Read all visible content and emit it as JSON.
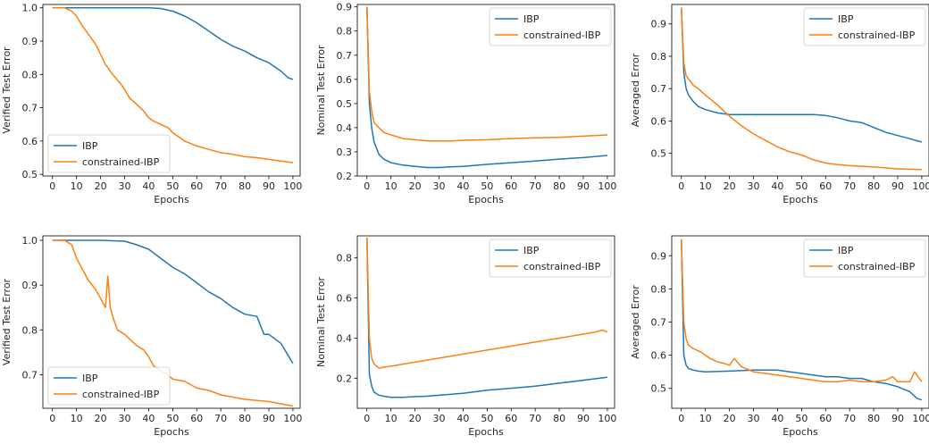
{
  "colors": {
    "IBP": "#1f77b4",
    "constrained-IBP": "#ff7f0e"
  },
  "chart_data": [
    {
      "type": "line",
      "xlabel": "Epochs",
      "ylabel": "Verified Test Error",
      "xlim": [
        -4,
        103
      ],
      "ylim": [
        0.495,
        1.01
      ],
      "xticks": [
        0,
        10,
        20,
        30,
        40,
        50,
        60,
        70,
        80,
        90,
        100
      ],
      "yticks": [
        0.5,
        0.6,
        0.7,
        0.8,
        0.9,
        1.0
      ],
      "yticklabels": [
        "0.5",
        "0.6",
        "0.7",
        "0.8",
        "0.9",
        "1.0"
      ],
      "legend": "bottom-left",
      "series": [
        {
          "name": "IBP",
          "color": "IBP",
          "x": [
            0,
            5,
            10,
            20,
            30,
            40,
            45,
            50,
            55,
            60,
            65,
            70,
            75,
            80,
            85,
            90,
            95,
            98,
            100
          ],
          "y": [
            1.0,
            1.0,
            1.0,
            1.0,
            1.0,
            1.0,
            0.998,
            0.99,
            0.975,
            0.955,
            0.93,
            0.905,
            0.885,
            0.87,
            0.85,
            0.835,
            0.81,
            0.79,
            0.785
          ]
        },
        {
          "name": "constrained-IBP",
          "color": "constrained-IBP",
          "x": [
            0,
            5,
            8,
            10,
            12,
            15,
            18,
            20,
            22,
            25,
            28,
            30,
            32,
            35,
            38,
            40,
            42,
            45,
            48,
            50,
            55,
            60,
            65,
            70,
            75,
            80,
            85,
            90,
            95,
            100
          ],
          "y": [
            1.0,
            1.0,
            0.99,
            0.975,
            0.95,
            0.92,
            0.89,
            0.86,
            0.83,
            0.8,
            0.775,
            0.755,
            0.73,
            0.71,
            0.69,
            0.67,
            0.66,
            0.65,
            0.64,
            0.625,
            0.6,
            0.585,
            0.575,
            0.565,
            0.56,
            0.553,
            0.55,
            0.545,
            0.54,
            0.535
          ]
        }
      ]
    },
    {
      "type": "line",
      "xlabel": "Epochs",
      "ylabel": "Nominal Test Error",
      "xlim": [
        -4,
        103
      ],
      "ylim": [
        0.2,
        0.91
      ],
      "xticks": [
        0,
        10,
        20,
        30,
        40,
        50,
        60,
        70,
        80,
        90,
        100
      ],
      "yticks": [
        0.2,
        0.3,
        0.4,
        0.5,
        0.6,
        0.7,
        0.8,
        0.9
      ],
      "yticklabels": [
        "0.2",
        "0.3",
        "0.4",
        "0.5",
        "0.6",
        "0.7",
        "0.8",
        "0.9"
      ],
      "legend": "top-right",
      "series": [
        {
          "name": "IBP",
          "color": "IBP",
          "x": [
            0,
            1,
            2,
            3,
            5,
            7,
            10,
            15,
            20,
            25,
            30,
            35,
            40,
            50,
            60,
            70,
            80,
            90,
            100
          ],
          "y": [
            0.9,
            0.5,
            0.4,
            0.34,
            0.29,
            0.27,
            0.255,
            0.245,
            0.24,
            0.235,
            0.235,
            0.238,
            0.24,
            0.248,
            0.255,
            0.262,
            0.27,
            0.276,
            0.285
          ]
        },
        {
          "name": "constrained-IBP",
          "color": "constrained-IBP",
          "x": [
            0,
            1,
            2,
            3,
            5,
            7,
            10,
            15,
            20,
            25,
            30,
            35,
            40,
            50,
            60,
            70,
            80,
            90,
            100
          ],
          "y": [
            0.9,
            0.55,
            0.47,
            0.42,
            0.4,
            0.38,
            0.37,
            0.355,
            0.35,
            0.345,
            0.345,
            0.345,
            0.348,
            0.35,
            0.355,
            0.358,
            0.36,
            0.365,
            0.37
          ]
        }
      ]
    },
    {
      "type": "line",
      "xlabel": "Epochs",
      "ylabel": "Averaged Error",
      "xlim": [
        -4,
        103
      ],
      "ylim": [
        0.43,
        0.96
      ],
      "xticks": [
        0,
        10,
        20,
        30,
        40,
        50,
        60,
        70,
        80,
        90,
        100
      ],
      "yticks": [
        0.5,
        0.6,
        0.7,
        0.8,
        0.9
      ],
      "yticklabels": [
        "0.5",
        "0.6",
        "0.7",
        "0.8",
        "0.9"
      ],
      "legend": "top-right",
      "series": [
        {
          "name": "IBP",
          "color": "IBP",
          "x": [
            0,
            1,
            2,
            3,
            5,
            7,
            10,
            15,
            20,
            25,
            30,
            40,
            50,
            55,
            60,
            65,
            70,
            75,
            80,
            85,
            90,
            95,
            100
          ],
          "y": [
            0.95,
            0.75,
            0.7,
            0.68,
            0.66,
            0.645,
            0.635,
            0.625,
            0.62,
            0.62,
            0.62,
            0.62,
            0.62,
            0.62,
            0.617,
            0.61,
            0.6,
            0.595,
            0.58,
            0.565,
            0.555,
            0.545,
            0.535
          ]
        },
        {
          "name": "constrained-IBP",
          "color": "constrained-IBP",
          "x": [
            0,
            1,
            2,
            3,
            5,
            7,
            10,
            15,
            20,
            25,
            30,
            35,
            40,
            45,
            50,
            55,
            60,
            65,
            70,
            80,
            90,
            100
          ],
          "y": [
            0.95,
            0.78,
            0.74,
            0.73,
            0.71,
            0.7,
            0.68,
            0.65,
            0.615,
            0.585,
            0.56,
            0.54,
            0.52,
            0.505,
            0.495,
            0.48,
            0.47,
            0.465,
            0.462,
            0.458,
            0.452,
            0.45
          ]
        }
      ]
    },
    {
      "type": "line",
      "xlabel": "Epochs",
      "ylabel": "Verified Test Error",
      "xlim": [
        -4,
        103
      ],
      "ylim": [
        0.625,
        1.01
      ],
      "xticks": [
        0,
        10,
        20,
        30,
        40,
        50,
        60,
        70,
        80,
        90,
        100
      ],
      "yticks": [
        0.7,
        0.8,
        0.9,
        1.0
      ],
      "yticklabels": [
        "0.7",
        "0.8",
        "0.9",
        "1.0"
      ],
      "legend": "bottom-left",
      "series": [
        {
          "name": "IBP",
          "color": "IBP",
          "x": [
            0,
            10,
            20,
            30,
            35,
            40,
            45,
            50,
            55,
            60,
            65,
            70,
            75,
            80,
            85,
            88,
            90,
            95,
            100
          ],
          "y": [
            1.0,
            1.0,
            1.0,
            0.998,
            0.99,
            0.98,
            0.96,
            0.94,
            0.925,
            0.905,
            0.885,
            0.87,
            0.85,
            0.835,
            0.83,
            0.79,
            0.79,
            0.77,
            0.725
          ]
        },
        {
          "name": "constrained-IBP",
          "color": "constrained-IBP",
          "x": [
            0,
            5,
            8,
            10,
            12,
            15,
            18,
            20,
            22,
            23,
            24,
            25,
            27,
            30,
            32,
            35,
            38,
            40,
            42,
            45,
            48,
            50,
            55,
            60,
            65,
            70,
            80,
            90,
            100
          ],
          "y": [
            1.0,
            1.0,
            0.99,
            0.96,
            0.94,
            0.91,
            0.89,
            0.87,
            0.85,
            0.92,
            0.85,
            0.83,
            0.8,
            0.79,
            0.78,
            0.765,
            0.755,
            0.74,
            0.72,
            0.71,
            0.7,
            0.69,
            0.685,
            0.67,
            0.665,
            0.655,
            0.645,
            0.64,
            0.63
          ]
        }
      ]
    },
    {
      "type": "line",
      "xlabel": "Epochs",
      "ylabel": "Nominal Test Error",
      "xlim": [
        -4,
        103
      ],
      "ylim": [
        0.05,
        0.91
      ],
      "xticks": [
        0,
        10,
        20,
        30,
        40,
        50,
        60,
        70,
        80,
        90,
        100
      ],
      "yticks": [
        0.2,
        0.4,
        0.6,
        0.8
      ],
      "yticklabels": [
        "0.2",
        "0.4",
        "0.6",
        "0.8"
      ],
      "legend": "top-right",
      "series": [
        {
          "name": "IBP",
          "color": "IBP",
          "x": [
            0,
            1,
            2,
            3,
            5,
            7,
            10,
            15,
            20,
            25,
            30,
            40,
            50,
            60,
            70,
            80,
            90,
            100
          ],
          "y": [
            0.9,
            0.22,
            0.16,
            0.13,
            0.115,
            0.11,
            0.105,
            0.105,
            0.108,
            0.11,
            0.115,
            0.125,
            0.14,
            0.15,
            0.16,
            0.175,
            0.19,
            0.205
          ]
        },
        {
          "name": "constrained-IBP",
          "color": "constrained-IBP",
          "x": [
            0,
            1,
            2,
            3,
            5,
            7,
            10,
            15,
            20,
            25,
            30,
            40,
            50,
            60,
            70,
            80,
            90,
            95,
            98,
            100
          ],
          "y": [
            0.9,
            0.4,
            0.3,
            0.27,
            0.25,
            0.255,
            0.26,
            0.27,
            0.28,
            0.29,
            0.3,
            0.32,
            0.34,
            0.36,
            0.38,
            0.4,
            0.42,
            0.43,
            0.44,
            0.43
          ]
        }
      ]
    },
    {
      "type": "line",
      "xlabel": "Epochs",
      "ylabel": "Averaged Error",
      "xlim": [
        -4,
        103
      ],
      "ylim": [
        0.44,
        0.96
      ],
      "xticks": [
        0,
        10,
        20,
        30,
        40,
        50,
        60,
        70,
        80,
        90,
        100
      ],
      "yticks": [
        0.5,
        0.6,
        0.7,
        0.8,
        0.9
      ],
      "yticklabels": [
        "0.5",
        "0.6",
        "0.7",
        "0.8",
        "0.9"
      ],
      "legend": "top-right",
      "series": [
        {
          "name": "IBP",
          "color": "IBP",
          "x": [
            0,
            1,
            2,
            3,
            5,
            7,
            10,
            20,
            30,
            40,
            45,
            50,
            55,
            60,
            65,
            70,
            75,
            80,
            85,
            90,
            95,
            98,
            100
          ],
          "y": [
            0.95,
            0.6,
            0.57,
            0.56,
            0.555,
            0.552,
            0.55,
            0.552,
            0.555,
            0.555,
            0.55,
            0.545,
            0.54,
            0.535,
            0.535,
            0.53,
            0.53,
            0.52,
            0.515,
            0.505,
            0.49,
            0.47,
            0.465
          ]
        },
        {
          "name": "constrained-IBP",
          "color": "constrained-IBP",
          "x": [
            0,
            1,
            2,
            3,
            5,
            8,
            10,
            12,
            15,
            18,
            20,
            22,
            25,
            30,
            35,
            40,
            45,
            50,
            55,
            60,
            65,
            70,
            75,
            80,
            85,
            88,
            90,
            95,
            97,
            100
          ],
          "y": [
            0.95,
            0.7,
            0.65,
            0.63,
            0.62,
            0.61,
            0.6,
            0.59,
            0.58,
            0.575,
            0.57,
            0.59,
            0.565,
            0.55,
            0.545,
            0.54,
            0.535,
            0.53,
            0.525,
            0.52,
            0.52,
            0.525,
            0.52,
            0.52,
            0.525,
            0.535,
            0.52,
            0.52,
            0.55,
            0.52
          ]
        }
      ]
    }
  ]
}
